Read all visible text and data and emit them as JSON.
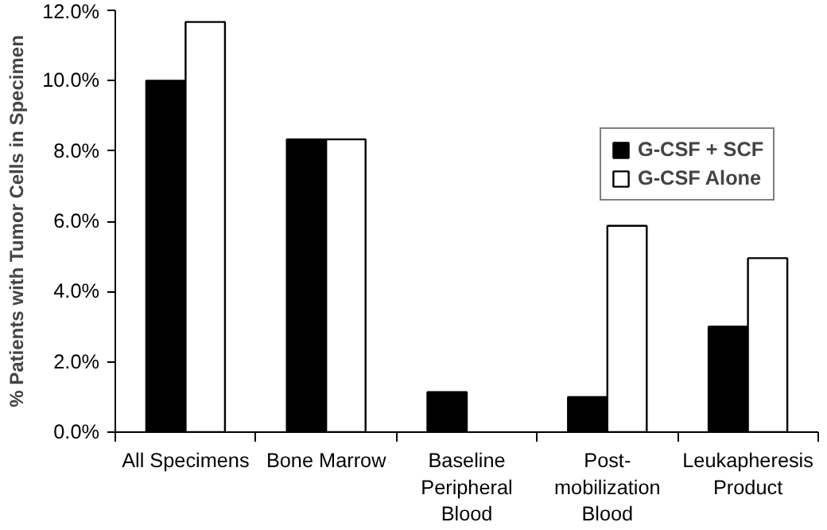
{
  "chart_data": {
    "type": "bar",
    "categories": [
      "All Specimens",
      "Bone Marrow",
      "Baseline\nPeripheral\nBlood",
      "Post-\nmobilization\nBlood",
      "Leukapheresis\nProduct"
    ],
    "ylabel": "% Patients with Tumor Cells in Specimen",
    "series": [
      {
        "name": "G-CSF + SCF",
        "color": "#000000",
        "values": [
          10.0,
          8.33,
          1.14,
          1.0,
          3.0
        ]
      },
      {
        "name": "G-CSF Alone",
        "color": "#ffffff",
        "values": [
          11.67,
          8.33,
          null,
          5.87,
          4.95
        ]
      }
    ],
    "ylim": [
      0,
      12
    ],
    "yticks": [
      {
        "value": 0,
        "label": "0.0%"
      },
      {
        "value": 2,
        "label": "2.0%"
      },
      {
        "value": 4,
        "label": "4.0%"
      },
      {
        "value": 6,
        "label": "6.0%"
      },
      {
        "value": 8,
        "label": "8.0%"
      },
      {
        "value": 10,
        "label": "10.0%"
      },
      {
        "value": 12,
        "label": "12.0%"
      }
    ],
    "grid": false,
    "legend": "top right"
  }
}
